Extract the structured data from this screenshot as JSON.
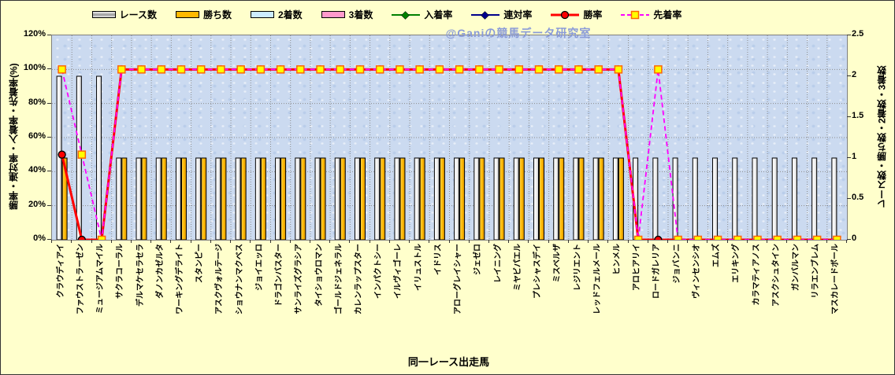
{
  "watermark": "@Ganiの競馬データ研究室",
  "colors": {
    "background": "#FFFFCC",
    "plot_background": "#CBDAF0",
    "race_bar": "silver",
    "win_bar": "#FFB900",
    "second_bar": "#CCECFF",
    "third_bar": "#FF99CC",
    "in_money_line": "#008000",
    "quinella_line": "#00008B",
    "win_rate_line": "#FF0000",
    "ahead_rate_line": "#FF00FF",
    "marker_square_fill": "#FFFF00",
    "marker_square_border": "#FF6600",
    "watermark_text": "#8A9BD8"
  },
  "legend": [
    {
      "key": "races",
      "label": "レース数",
      "swatch": "bar",
      "color": "silver"
    },
    {
      "key": "wins",
      "label": "勝ち数",
      "swatch": "bar",
      "color": "#FFB900"
    },
    {
      "key": "seconds",
      "label": "2着数",
      "swatch": "bar",
      "color": "#CCECFF"
    },
    {
      "key": "thirds",
      "label": "3着数",
      "swatch": "bar",
      "color": "#FF99CC"
    },
    {
      "key": "in-money",
      "label": "入着率",
      "swatch": "line-diamond",
      "color": "#008000"
    },
    {
      "key": "quinella",
      "label": "連対率",
      "swatch": "line-diamond",
      "color": "#00008B"
    },
    {
      "key": "win-rate",
      "label": "勝率",
      "swatch": "line-circle",
      "color": "#FF0000"
    },
    {
      "key": "ahead",
      "label": "先着率",
      "swatch": "line-square",
      "color": "#FF00FF"
    }
  ],
  "chart_data": {
    "type": "combo",
    "grid": true,
    "legend_position": "top",
    "xlabel": "同一レース出走馬",
    "left_axis": {
      "label": "勝率・連対率・入着率・先着率(%)",
      "range": [
        0,
        120
      ],
      "tick_labels": [
        "0%",
        "20%",
        "40%",
        "60%",
        "80%",
        "100%",
        "120%"
      ]
    },
    "right_axis": {
      "label": "レース数・勝ち数・2着数・3着数",
      "range": [
        0,
        2.5
      ],
      "tick_labels": [
        "0",
        "0.5",
        "1",
        "1.5",
        "2",
        "2.5"
      ]
    },
    "categories": [
      "クラウディアイ",
      "ファウストラーゼン",
      "ミュージアムマイル",
      "サクラコーラル",
      "デルマケセラセラ",
      "ダノンカゼルタ",
      "ワーキングデライト",
      "スタンピー",
      "アスクヴォルテージ",
      "ショウナンマクベス",
      "ジョイエッロ",
      "ドラゴンバスター",
      "サンライズグラシア",
      "タイショウロマン",
      "ゴールドジェネラル",
      "カレンラップスター",
      "インパクトシー",
      "イルヴィゴーレ",
      "イリュストル",
      "イドリス",
      "アローグレイシャー",
      "ジェゼロ",
      "レイニング",
      "ミヤビパエル",
      "プレシャスデイ",
      "ミスベルザ",
      "レジリエント",
      "レッドフェルメール",
      "ヒンメル",
      "アロヒアリイ",
      "ロードガレリア",
      "ジョバンニ",
      "ヴィンセンシオ",
      "エムズ",
      "エリキング",
      "カラマティアノス",
      "アスクシュタイン",
      "ガンバルマン",
      "リラエンブレム",
      "マスカレードボール"
    ],
    "bar_series": [
      {
        "name": "レース数",
        "key": "races",
        "color": "silver",
        "values": [
          2,
          2,
          2,
          1,
          1,
          1,
          1,
          1,
          1,
          1,
          1,
          1,
          1,
          1,
          1,
          1,
          1,
          1,
          1,
          1,
          1,
          1,
          1,
          1,
          1,
          1,
          1,
          1,
          1,
          1,
          1,
          1,
          1,
          1,
          1,
          1,
          1,
          1,
          1,
          1
        ]
      },
      {
        "name": "勝ち数",
        "key": "wins",
        "color": "#FFB900",
        "values": [
          1,
          0,
          0,
          1,
          1,
          1,
          1,
          1,
          1,
          1,
          1,
          1,
          1,
          1,
          1,
          1,
          1,
          1,
          1,
          1,
          1,
          1,
          1,
          1,
          1,
          1,
          1,
          1,
          1,
          0,
          0,
          0,
          0,
          0,
          0,
          0,
          0,
          0,
          0,
          0
        ]
      },
      {
        "name": "2着数",
        "key": "seconds",
        "color": "#CCECFF",
        "values": [
          0,
          0,
          0,
          0,
          0,
          0,
          0,
          0,
          0,
          0,
          0,
          0,
          0,
          0,
          0,
          0,
          0,
          0,
          0,
          0,
          0,
          0,
          0,
          0,
          0,
          0,
          0,
          0,
          0,
          0,
          0,
          0,
          0,
          0,
          0,
          0,
          0,
          0,
          0,
          0
        ]
      },
      {
        "name": "3着数",
        "key": "thirds",
        "color": "#FF99CC",
        "values": [
          0,
          0,
          0,
          0,
          0,
          0,
          0,
          0,
          0,
          0,
          0,
          0,
          0,
          0,
          0,
          0,
          0,
          0,
          0,
          0,
          0,
          0,
          0,
          0,
          0,
          0,
          0,
          0,
          0,
          0,
          0,
          0,
          0,
          0,
          0,
          0,
          0,
          0,
          0,
          0
        ]
      }
    ],
    "line_series": [
      {
        "name": "入着率",
        "key": "in-money",
        "color": "#008000",
        "width": 1.2,
        "dash": "",
        "marker": "diamond",
        "values": [
          50,
          0,
          0,
          100,
          100,
          100,
          100,
          100,
          100,
          100,
          100,
          100,
          100,
          100,
          100,
          100,
          100,
          100,
          100,
          100,
          100,
          100,
          100,
          100,
          100,
          100,
          100,
          100,
          100,
          0,
          0,
          0,
          0,
          0,
          0,
          0,
          0,
          0,
          0,
          0
        ]
      },
      {
        "name": "連対率",
        "key": "quinella",
        "color": "#00008B",
        "width": 1.2,
        "dash": "",
        "marker": "diamond",
        "values": [
          50,
          0,
          0,
          100,
          100,
          100,
          100,
          100,
          100,
          100,
          100,
          100,
          100,
          100,
          100,
          100,
          100,
          100,
          100,
          100,
          100,
          100,
          100,
          100,
          100,
          100,
          100,
          100,
          100,
          0,
          0,
          0,
          0,
          0,
          0,
          0,
          0,
          0,
          0,
          0
        ]
      },
      {
        "name": "勝率",
        "key": "win-rate",
        "color": "#FF0000",
        "width": 3,
        "dash": "",
        "marker": "circle",
        "values": [
          50,
          0,
          0,
          100,
          100,
          100,
          100,
          100,
          100,
          100,
          100,
          100,
          100,
          100,
          100,
          100,
          100,
          100,
          100,
          100,
          100,
          100,
          100,
          100,
          100,
          100,
          100,
          100,
          100,
          0,
          0,
          0,
          0,
          0,
          0,
          0,
          0,
          0,
          0,
          0
        ]
      },
      {
        "name": "先着率",
        "key": "ahead",
        "color": "#FF00FF",
        "width": 1.8,
        "dash": "6 4",
        "marker": "square",
        "values": [
          100,
          50,
          0,
          100,
          100,
          100,
          100,
          100,
          100,
          100,
          100,
          100,
          100,
          100,
          100,
          100,
          100,
          100,
          100,
          100,
          100,
          100,
          100,
          100,
          100,
          100,
          100,
          100,
          100,
          0,
          100,
          0,
          0,
          0,
          0,
          0,
          0,
          0,
          0,
          0
        ]
      }
    ]
  }
}
